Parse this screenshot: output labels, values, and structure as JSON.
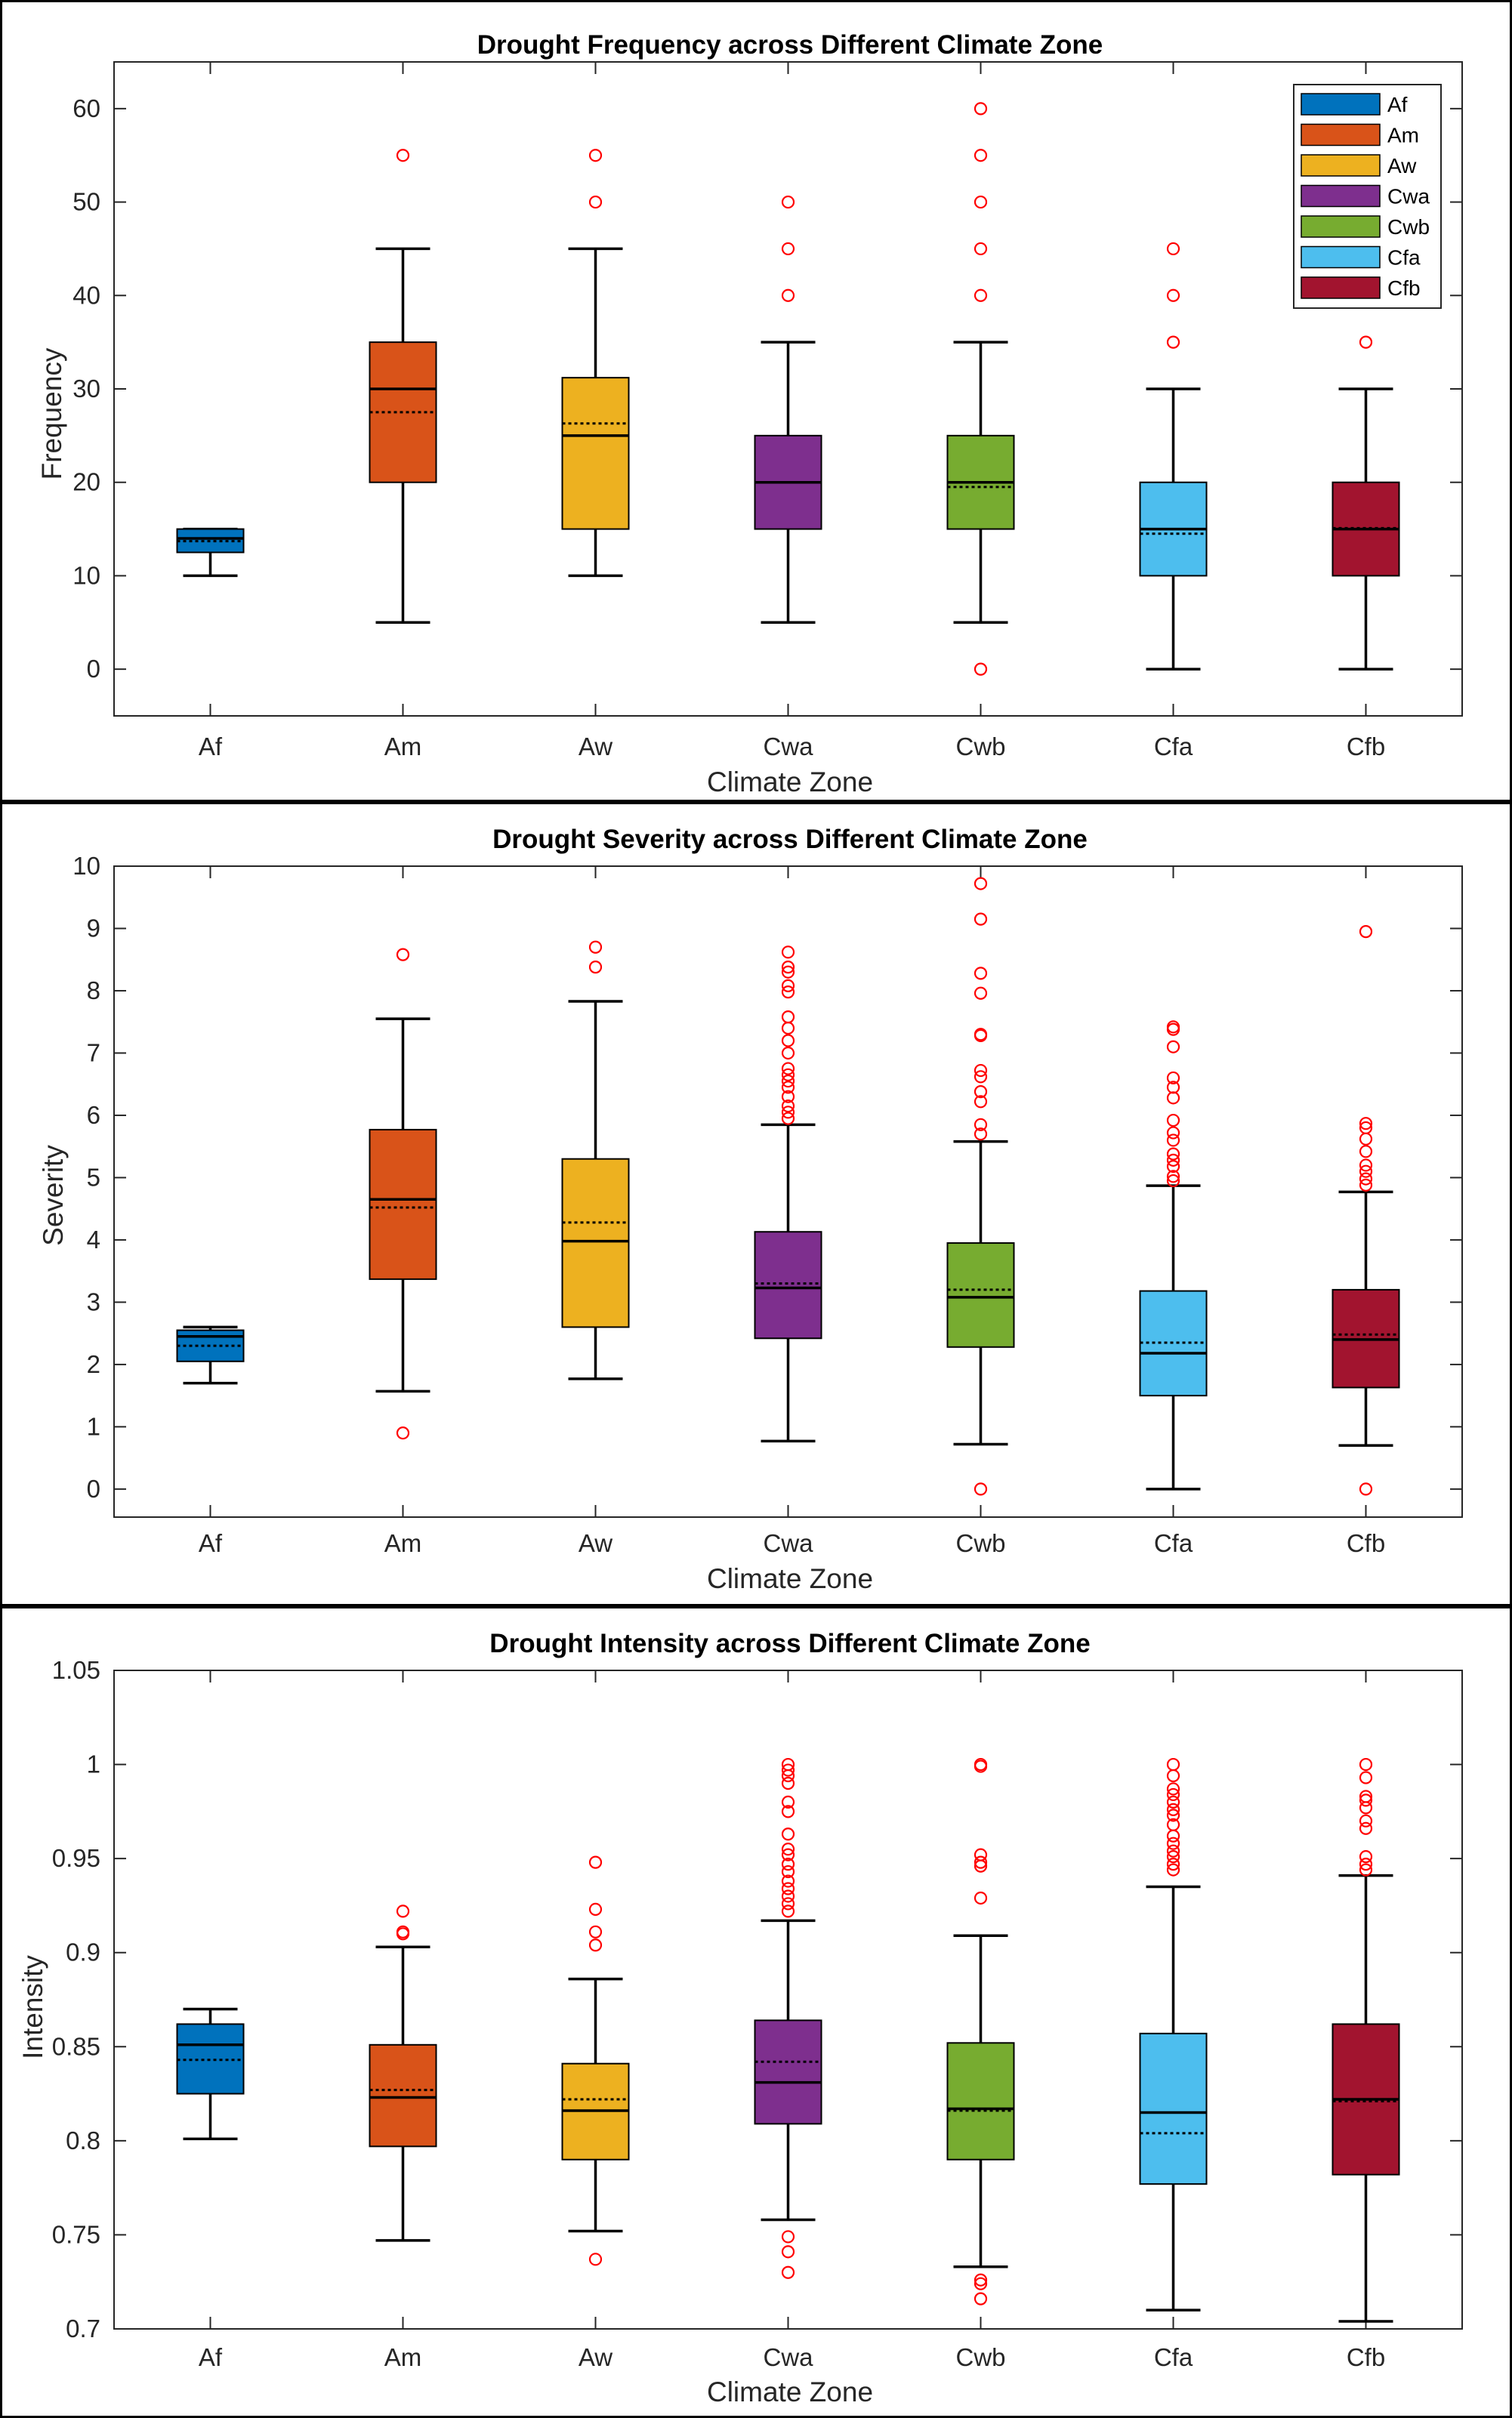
{
  "colors": {
    "Af": "#0072BD",
    "Am": "#D95319",
    "Aw": "#EDB120",
    "Cwa": "#7E2F8E",
    "Cwb": "#77AC30",
    "Cfa": "#4DBEEE",
    "Cfb": "#A2142F",
    "outlier": "#FF0000"
  },
  "panels": [
    {
      "title": "Drought Frequency across Different Climate Zone",
      "xlabel": "Climate Zone",
      "ylabel": "Frequency"
    },
    {
      "title": "Drought Severity across Different Climate Zone",
      "xlabel": "Climate Zone",
      "ylabel": "Severity"
    },
    {
      "title": "Drought Intensity across Different Climate Zone",
      "xlabel": "Climate Zone",
      "ylabel": "Intensity"
    }
  ],
  "legend": {
    "entries": [
      "Af",
      "Am",
      "Aw",
      "Cwa",
      "Cwb",
      "Cfa",
      "Cfb"
    ],
    "placement": "top-right"
  },
  "chart_data": [
    {
      "type": "box",
      "title": "Drought Frequency across Different Climate Zone",
      "xlabel": "Climate Zone",
      "ylabel": "Frequency",
      "categories": [
        "Af",
        "Am",
        "Aw",
        "Cwa",
        "Cwb",
        "Cfa",
        "Cfb"
      ],
      "ylim": [
        -5,
        65
      ],
      "yticks": [
        0,
        10,
        20,
        30,
        40,
        50,
        60
      ],
      "ytick_labels": [
        "0",
        "10",
        "20",
        "30",
        "40",
        "50",
        "60"
      ],
      "legend": "top-right",
      "boxes": [
        {
          "name": "Af",
          "whisker_low": 10,
          "q1": 12.5,
          "median": 14,
          "mean": 13.7,
          "q3": 15,
          "whisker_high": 15,
          "outliers": []
        },
        {
          "name": "Am",
          "whisker_low": 5,
          "q1": 20,
          "median": 30,
          "mean": 27.5,
          "q3": 35,
          "whisker_high": 45,
          "outliers": [
            55
          ]
        },
        {
          "name": "Aw",
          "whisker_low": 10,
          "q1": 15,
          "median": 25,
          "mean": 26.3,
          "q3": 31.2,
          "whisker_high": 45,
          "outliers": [
            50,
            55
          ]
        },
        {
          "name": "Cwa",
          "whisker_low": 5,
          "q1": 15,
          "median": 20,
          "mean": 20,
          "q3": 25,
          "whisker_high": 35,
          "outliers": [
            40,
            45,
            50
          ]
        },
        {
          "name": "Cwb",
          "whisker_low": 5,
          "q1": 15,
          "median": 20,
          "mean": 19.5,
          "q3": 25,
          "whisker_high": 35,
          "outliers": [
            0,
            40,
            45,
            50,
            55,
            60
          ]
        },
        {
          "name": "Cfa",
          "whisker_low": 0,
          "q1": 10,
          "median": 15,
          "mean": 14.5,
          "q3": 20,
          "whisker_high": 30,
          "outliers": [
            35,
            40,
            45
          ]
        },
        {
          "name": "Cfb",
          "whisker_low": 0,
          "q1": 10,
          "median": 15,
          "mean": 15.1,
          "q3": 20,
          "whisker_high": 30,
          "outliers": [
            35
          ]
        }
      ]
    },
    {
      "type": "box",
      "title": "Drought Severity across Different Climate Zone",
      "xlabel": "Climate Zone",
      "ylabel": "Severity",
      "categories": [
        "Af",
        "Am",
        "Aw",
        "Cwa",
        "Cwb",
        "Cfa",
        "Cfb"
      ],
      "ylim": [
        -0.45,
        10
      ],
      "yticks": [
        0,
        1,
        2,
        3,
        4,
        5,
        6,
        7,
        8,
        9,
        10
      ],
      "ytick_labels": [
        "0",
        "1",
        "2",
        "3",
        "4",
        "5",
        "6",
        "7",
        "8",
        "9",
        "10"
      ],
      "boxes": [
        {
          "name": "Af",
          "whisker_low": 1.7,
          "q1": 2.05,
          "median": 2.45,
          "mean": 2.3,
          "q3": 2.55,
          "whisker_high": 2.6,
          "outliers": []
        },
        {
          "name": "Am",
          "whisker_low": 1.57,
          "q1": 3.37,
          "median": 4.65,
          "mean": 4.52,
          "q3": 5.77,
          "whisker_high": 7.55,
          "outliers": [
            0.9,
            8.58
          ]
        },
        {
          "name": "Aw",
          "whisker_low": 1.77,
          "q1": 2.6,
          "median": 3.98,
          "mean": 4.28,
          "q3": 5.3,
          "whisker_high": 7.83,
          "outliers": [
            8.38,
            8.7
          ]
        },
        {
          "name": "Cwa",
          "whisker_low": 0.77,
          "q1": 2.42,
          "median": 3.23,
          "mean": 3.3,
          "q3": 4.13,
          "whisker_high": 5.85,
          "outliers": [
            5.95,
            6.05,
            6.15,
            6.3,
            6.45,
            6.55,
            6.65,
            6.75,
            7.0,
            7.2,
            7.4,
            7.58,
            7.98,
            8.08,
            8.3,
            8.38,
            8.62
          ]
        },
        {
          "name": "Cwb",
          "whisker_low": 0.72,
          "q1": 2.28,
          "median": 3.08,
          "mean": 3.2,
          "q3": 3.95,
          "whisker_high": 5.58,
          "outliers": [
            0.0,
            5.7,
            5.85,
            6.22,
            6.38,
            6.62,
            6.72,
            7.28,
            7.3,
            7.96,
            8.28,
            9.15,
            9.72
          ]
        },
        {
          "name": "Cfa",
          "whisker_low": 0.0,
          "q1": 1.5,
          "median": 2.18,
          "mean": 2.35,
          "q3": 3.18,
          "whisker_high": 4.87,
          "outliers": [
            4.95,
            5.02,
            5.18,
            5.28,
            5.38,
            5.6,
            5.72,
            5.92,
            6.28,
            6.45,
            6.6,
            7.1,
            7.38,
            7.42
          ]
        },
        {
          "name": "Cfb",
          "whisker_low": 0.7,
          "q1": 1.63,
          "median": 2.4,
          "mean": 2.48,
          "q3": 3.2,
          "whisker_high": 4.77,
          "outliers": [
            0.0,
            4.88,
            4.98,
            5.1,
            5.2,
            5.42,
            5.62,
            5.8,
            5.87,
            8.95
          ]
        }
      ]
    },
    {
      "type": "box",
      "title": "Drought Intensity across Different Climate Zone",
      "xlabel": "Climate Zone",
      "ylabel": "Intensity",
      "categories": [
        "Af",
        "Am",
        "Aw",
        "Cwa",
        "Cwb",
        "Cfa",
        "Cfb"
      ],
      "ylim": [
        0.7,
        1.05
      ],
      "yticks": [
        0.7,
        0.75,
        0.8,
        0.85,
        0.9,
        0.95,
        1.0,
        1.05
      ],
      "ytick_labels": [
        "0.7",
        "0.75",
        "0.8",
        "0.85",
        "0.9",
        "0.95",
        "1",
        "1.05"
      ],
      "boxes": [
        {
          "name": "Af",
          "whisker_low": 0.801,
          "q1": 0.825,
          "median": 0.851,
          "mean": 0.843,
          "q3": 0.862,
          "whisker_high": 0.87,
          "outliers": []
        },
        {
          "name": "Am",
          "whisker_low": 0.747,
          "q1": 0.797,
          "median": 0.823,
          "mean": 0.827,
          "q3": 0.851,
          "whisker_high": 0.903,
          "outliers": [
            0.91,
            0.911,
            0.922
          ]
        },
        {
          "name": "Aw",
          "whisker_low": 0.752,
          "q1": 0.79,
          "median": 0.816,
          "mean": 0.822,
          "q3": 0.841,
          "whisker_high": 0.886,
          "outliers": [
            0.737,
            0.904,
            0.911,
            0.923,
            0.948
          ]
        },
        {
          "name": "Cwa",
          "whisker_low": 0.758,
          "q1": 0.809,
          "median": 0.831,
          "mean": 0.842,
          "q3": 0.864,
          "whisker_high": 0.917,
          "outliers": [
            0.73,
            0.741,
            0.749,
            0.922,
            0.926,
            0.93,
            0.934,
            0.938,
            0.943,
            0.947,
            0.952,
            0.955,
            0.963,
            0.975,
            0.98,
            0.99,
            0.994,
            0.997,
            1.0
          ]
        },
        {
          "name": "Cwb",
          "whisker_low": 0.733,
          "q1": 0.79,
          "median": 0.817,
          "mean": 0.816,
          "q3": 0.852,
          "whisker_high": 0.909,
          "outliers": [
            0.716,
            0.724,
            0.726,
            0.929,
            0.946,
            0.948,
            0.952,
            0.999,
            1.0
          ]
        },
        {
          "name": "Cfa",
          "whisker_low": 0.71,
          "q1": 0.777,
          "median": 0.815,
          "mean": 0.804,
          "q3": 0.857,
          "whisker_high": 0.935,
          "outliers": [
            0.944,
            0.947,
            0.951,
            0.954,
            0.958,
            0.962,
            0.968,
            0.973,
            0.976,
            0.98,
            0.984,
            0.987,
            0.994,
            1.0
          ]
        },
        {
          "name": "Cfb",
          "whisker_low": 0.704,
          "q1": 0.782,
          "median": 0.822,
          "mean": 0.821,
          "q3": 0.862,
          "whisker_high": 0.941,
          "outliers": [
            0.944,
            0.947,
            0.951,
            0.966,
            0.97,
            0.977,
            0.981,
            0.983,
            0.993,
            1.0
          ]
        }
      ]
    }
  ]
}
